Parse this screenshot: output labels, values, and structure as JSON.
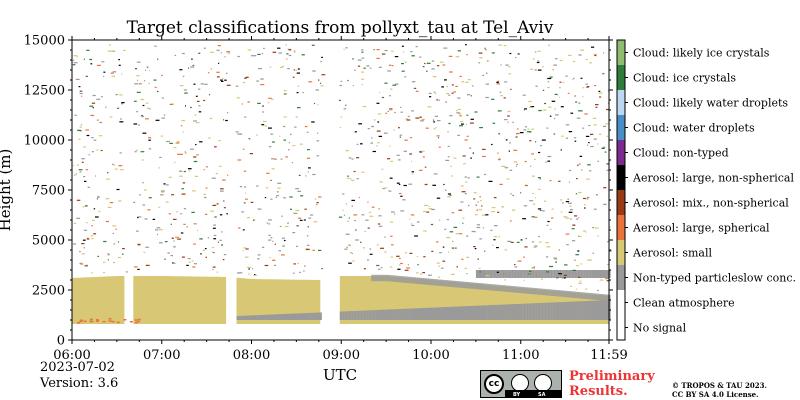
{
  "chart_data": {
    "type": "heatmap",
    "title": "Target classifications from pollyxt_tau at Tel_Aviv",
    "xlabel": "UTC",
    "ylabel": "Height (m)",
    "x_ticks": [
      "06:00",
      "07:00",
      "08:00",
      "09:00",
      "10:00",
      "11:00",
      "11:59"
    ],
    "x_range": [
      "06:00",
      "11:59"
    ],
    "y_ticks": [
      0,
      2500,
      5000,
      7500,
      10000,
      12500,
      15000
    ],
    "ylim": [
      0,
      15000
    ],
    "legend_placement": "right colorbar",
    "classes": [
      {
        "label": "Cloud: likely ice crystals",
        "color": "#8fbc6e"
      },
      {
        "label": "Cloud: ice crystals",
        "color": "#2e7d3c"
      },
      {
        "label": "Cloud: likely water droplets",
        "color": "#bcd8f2"
      },
      {
        "label": "Cloud: water droplets",
        "color": "#4a8ec8"
      },
      {
        "label": "Cloud: non-typed",
        "color": "#7b2a8e"
      },
      {
        "label": "Aerosol: large, non-spherical",
        "color": "#000000"
      },
      {
        "label": "Aerosol: mix., non-spherical",
        "color": "#9a3a14"
      },
      {
        "label": "Aerosol: large, spherical",
        "color": "#e8743a"
      },
      {
        "label": "Aerosol: small",
        "color": "#d8c875"
      },
      {
        "label": "Non-typed particleslow conc.",
        "color": "#9a9a9a"
      },
      {
        "label": "Clean atmosphere",
        "color": "#ffffff"
      },
      {
        "label": "No signal",
        "color": "#ffffff"
      }
    ],
    "data_gaps_utc": [
      [
        "06:36",
        "06:40"
      ],
      [
        "07:44",
        "07:49"
      ],
      [
        "08:47",
        "08:58"
      ]
    ],
    "aerosol_layer_top_m": [
      {
        "time": "06:00",
        "height": 3100
      },
      {
        "time": "06:30",
        "height": 3200
      },
      {
        "time": "07:00",
        "height": 3200
      },
      {
        "time": "07:45",
        "height": 3150
      },
      {
        "time": "08:00",
        "height": 3050
      },
      {
        "time": "08:45",
        "height": 3000
      },
      {
        "time": "09:00",
        "height": 3200
      },
      {
        "time": "09:30",
        "height": 3200
      },
      {
        "time": "10:00",
        "height": 3000
      },
      {
        "time": "10:30",
        "height": 2800
      },
      {
        "time": "11:00",
        "height": 2600
      },
      {
        "time": "11:30",
        "height": 2400
      },
      {
        "time": "11:59",
        "height": 2200
      }
    ],
    "lowest_height_m": 800
  },
  "footer": {
    "date": "2023-07-02",
    "version": "Version: 3.6",
    "preliminary_line1": "Preliminary",
    "preliminary_line2": "Results.",
    "copyright_line1": "© TROPOS & TAU 2023.",
    "copyright_line2": "CC BY SA 4.0 License.",
    "badge_by": "BY",
    "badge_sa": "SA"
  },
  "colors": {
    "aerosol_small": "#d8c875",
    "nontyped": "#9a9a9a",
    "prelim": "#ee3333"
  }
}
